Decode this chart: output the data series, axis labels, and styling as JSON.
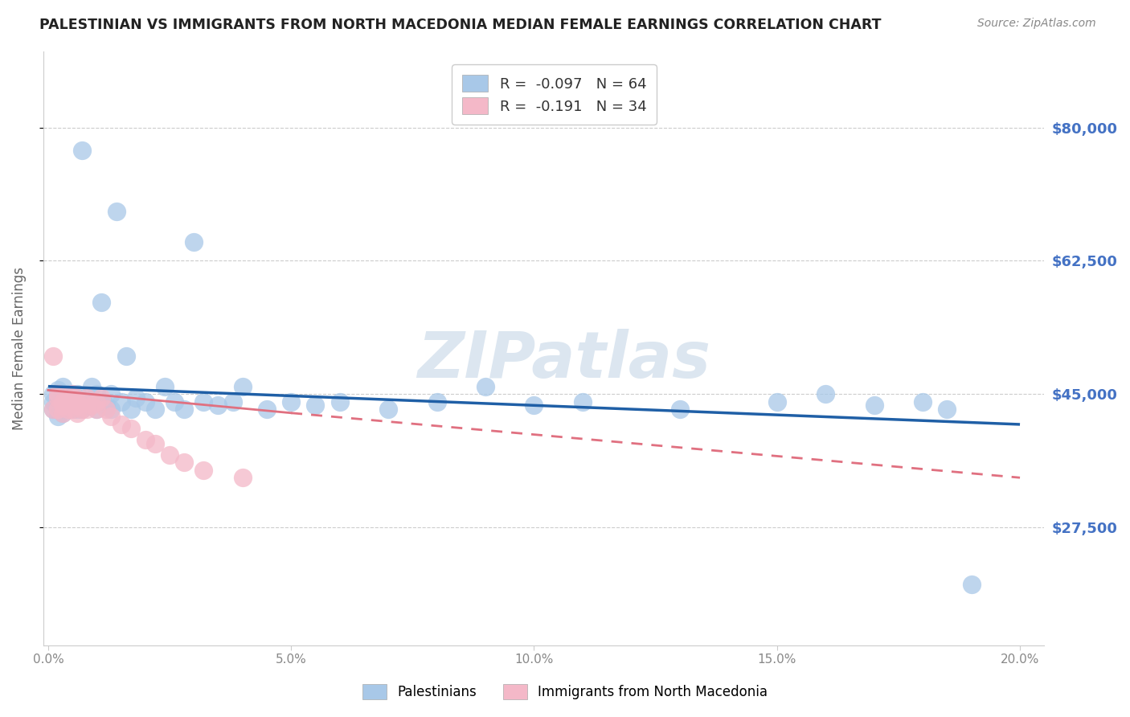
{
  "title": "PALESTINIAN VS IMMIGRANTS FROM NORTH MACEDONIA MEDIAN FEMALE EARNINGS CORRELATION CHART",
  "source": "Source: ZipAtlas.com",
  "ylabel": "Median Female Earnings",
  "ytick_labels": [
    "$27,500",
    "$45,000",
    "$62,500",
    "$80,000"
  ],
  "ytick_vals": [
    27500,
    45000,
    62500,
    80000
  ],
  "ylim": [
    12000,
    90000
  ],
  "xlim": [
    -0.001,
    0.205
  ],
  "blue_line_color": "#1f5fa6",
  "pink_line_color": "#e07080",
  "scatter_blue": "#a8c8e8",
  "scatter_pink": "#f4b8c8",
  "background_color": "#ffffff",
  "grid_color": "#cccccc",
  "title_color": "#222222",
  "right_axis_color": "#4472c4",
  "watermark_color": "#dce6f0",
  "palestinians_x": [
    0.001,
    0.001,
    0.001,
    0.002,
    0.002,
    0.002,
    0.002,
    0.003,
    0.003,
    0.003,
    0.003,
    0.003,
    0.004,
    0.004,
    0.004,
    0.005,
    0.005,
    0.005,
    0.006,
    0.006,
    0.006,
    0.007,
    0.007,
    0.008,
    0.008,
    0.009,
    0.009,
    0.01,
    0.01,
    0.011,
    0.012,
    0.013,
    0.013,
    0.014,
    0.015,
    0.016,
    0.017,
    0.018,
    0.02,
    0.022,
    0.024,
    0.026,
    0.028,
    0.03,
    0.032,
    0.035,
    0.038,
    0.04,
    0.045,
    0.05,
    0.055,
    0.06,
    0.07,
    0.08,
    0.09,
    0.1,
    0.11,
    0.13,
    0.15,
    0.16,
    0.17,
    0.18,
    0.185,
    0.19
  ],
  "palestinians_y": [
    44000,
    43000,
    45000,
    44500,
    43500,
    42000,
    45500,
    44000,
    43000,
    46000,
    42500,
    44000,
    45000,
    43500,
    44000,
    43000,
    45000,
    44000,
    43000,
    44500,
    45000,
    77000,
    43000,
    44000,
    43500,
    46000,
    44000,
    43000,
    45000,
    57000,
    43500,
    43000,
    45000,
    69000,
    44000,
    50000,
    43000,
    44500,
    44000,
    43000,
    46000,
    44000,
    43000,
    65000,
    44000,
    43500,
    44000,
    46000,
    43000,
    44000,
    43500,
    44000,
    43000,
    44000,
    46000,
    43500,
    44000,
    43000,
    44000,
    45000,
    43500,
    44000,
    43000,
    20000
  ],
  "macedonia_x": [
    0.001,
    0.001,
    0.002,
    0.002,
    0.002,
    0.003,
    0.003,
    0.003,
    0.004,
    0.004,
    0.005,
    0.005,
    0.005,
    0.006,
    0.006,
    0.006,
    0.007,
    0.007,
    0.008,
    0.008,
    0.009,
    0.01,
    0.01,
    0.011,
    0.012,
    0.013,
    0.015,
    0.017,
    0.02,
    0.022,
    0.025,
    0.028,
    0.032,
    0.04
  ],
  "macedonia_y": [
    50000,
    43000,
    44500,
    43000,
    45000,
    44000,
    43500,
    42500,
    44000,
    43000,
    44500,
    43000,
    45000,
    44000,
    42500,
    43500,
    44000,
    43000,
    44500,
    43000,
    43500,
    44000,
    43000,
    44500,
    43000,
    42000,
    41000,
    40500,
    39000,
    38500,
    37000,
    36000,
    35000,
    34000
  ],
  "blue_line": {
    "x0": 0.0,
    "x1": 0.2,
    "y0": 46000,
    "y1": 41000
  },
  "pink_line_solid": {
    "x0": 0.0,
    "x1": 0.05,
    "y0": 45500,
    "y1": 42500
  },
  "pink_line_dash": {
    "x0": 0.05,
    "x1": 0.2,
    "y0": 42500,
    "y1": 34000
  },
  "legend_blue_label": "R =  -0.097   N = 64",
  "legend_pink_label": "R =  -0.191   N = 34",
  "bottom_legend_blue": "Palestinians",
  "bottom_legend_pink": "Immigrants from North Macedonia"
}
